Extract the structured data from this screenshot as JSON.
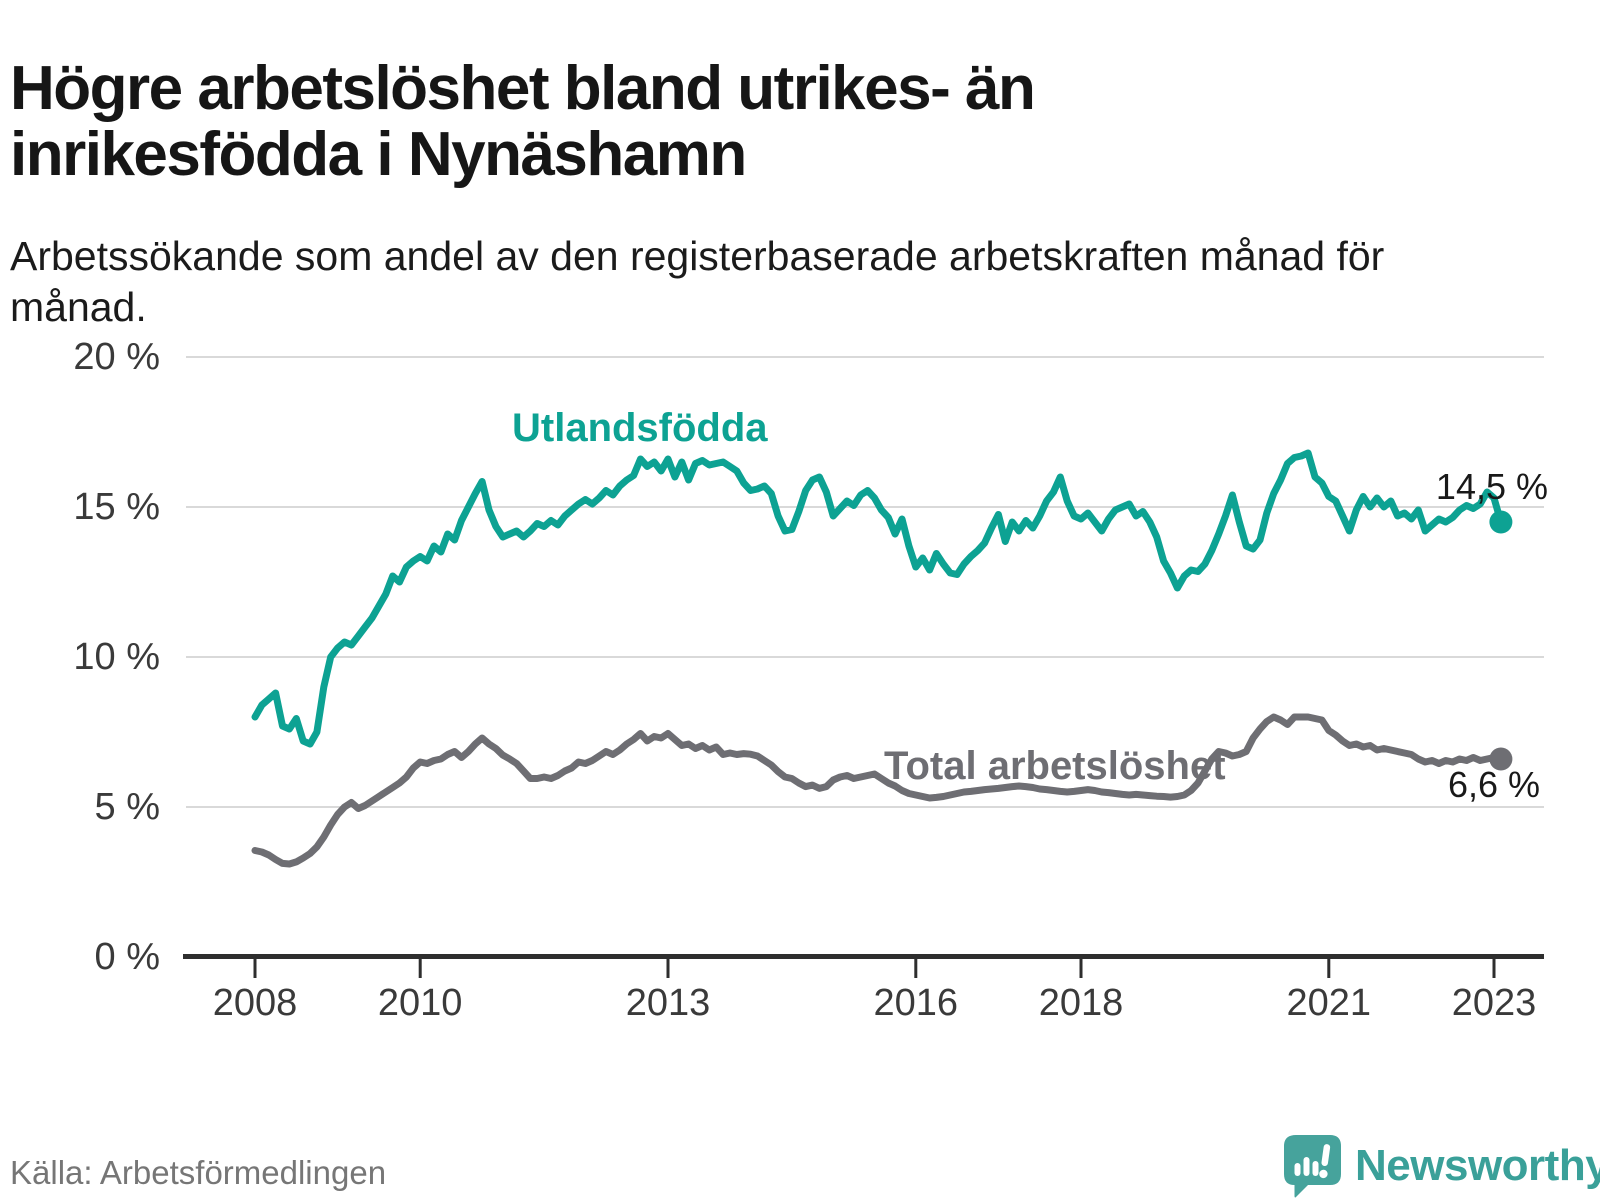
{
  "title": "Högre arbetslöshet bland utrikes- än inrikesfödda i Nynäshamn",
  "subtitle": "Arbetssökande som andel av den registerbaserade arbetskraften månad för månad.",
  "source": "Källa: Arbetsförmedlingen",
  "branding": {
    "logo_text": "Newsworthy",
    "logo_icon": "speech-bubble-bar-chart-exclamation"
  },
  "colors": {
    "accent_teal": "#0da293",
    "series_gray": "#6e6e73",
    "grid": "#d9d9d9",
    "axis": "#2e2e2e",
    "tick_text": "#3a3a3a",
    "annotation_text": "#191919",
    "logo_teal": "#46a39c",
    "logo_text_teal": "#3aa099"
  },
  "chart_data": {
    "type": "line",
    "unit": "%",
    "frequency": "monthly",
    "x_start": "2008-01",
    "x_end": "2023-02",
    "ylim": [
      0,
      20
    ],
    "grid": true,
    "legend": "inline-labels",
    "y_ticks": [
      {
        "label": "20 %",
        "value": 20
      },
      {
        "label": "15 %",
        "value": 15
      },
      {
        "label": "10 %",
        "value": 10
      },
      {
        "label": "5 %",
        "value": 5
      },
      {
        "label": "0 %",
        "value": 0
      }
    ],
    "x_ticks": [
      {
        "label": "2008",
        "year": 2008
      },
      {
        "label": "2010",
        "year": 2010
      },
      {
        "label": "2013",
        "year": 2013
      },
      {
        "label": "2016",
        "year": 2016
      },
      {
        "label": "2018",
        "year": 2018
      },
      {
        "label": "2021",
        "year": 2021
      },
      {
        "label": "2023",
        "year": 2023
      }
    ],
    "series": [
      {
        "name": "Utlandsfödda",
        "color": "#0da293",
        "end_label": "14,5 %",
        "end_value": 14.5,
        "values": [
          8.0,
          8.4,
          8.6,
          8.8,
          7.7,
          7.6,
          7.95,
          7.2,
          7.1,
          7.5,
          9.0,
          10.0,
          10.3,
          10.5,
          10.4,
          10.7,
          11.0,
          11.3,
          11.7,
          12.1,
          12.7,
          12.5,
          13.0,
          13.2,
          13.35,
          13.2,
          13.7,
          13.5,
          14.1,
          13.9,
          14.55,
          15.0,
          15.45,
          15.85,
          14.9,
          14.35,
          14.0,
          14.1,
          14.2,
          14.0,
          14.2,
          14.45,
          14.35,
          14.55,
          14.4,
          14.7,
          14.9,
          15.1,
          15.25,
          15.1,
          15.3,
          15.55,
          15.4,
          15.7,
          15.9,
          16.05,
          16.6,
          16.35,
          16.5,
          16.2,
          16.6,
          16.0,
          16.5,
          15.9,
          16.45,
          16.55,
          16.4,
          16.45,
          16.5,
          16.35,
          16.2,
          15.8,
          15.55,
          15.6,
          15.7,
          15.45,
          14.7,
          14.2,
          14.25,
          14.85,
          15.55,
          15.9,
          16.0,
          15.5,
          14.7,
          14.95,
          15.2,
          15.05,
          15.4,
          15.55,
          15.3,
          14.9,
          14.65,
          14.1,
          14.6,
          13.7,
          13.0,
          13.3,
          12.9,
          13.45,
          13.1,
          12.8,
          12.75,
          13.1,
          13.35,
          13.55,
          13.8,
          14.3,
          14.75,
          13.85,
          14.5,
          14.2,
          14.55,
          14.3,
          14.7,
          15.2,
          15.5,
          16.0,
          15.2,
          14.7,
          14.6,
          14.8,
          14.5,
          14.2,
          14.6,
          14.9,
          15.0,
          15.1,
          14.7,
          14.85,
          14.5,
          14.0,
          13.2,
          12.8,
          12.3,
          12.7,
          12.9,
          12.85,
          13.1,
          13.55,
          14.1,
          14.7,
          15.4,
          14.5,
          13.7,
          13.6,
          13.9,
          14.8,
          15.45,
          15.9,
          16.45,
          16.65,
          16.7,
          16.8,
          16.0,
          15.8,
          15.35,
          15.2,
          14.7,
          14.2,
          14.9,
          15.35,
          15.0,
          15.3,
          15.0,
          15.2,
          14.7,
          14.8,
          14.6,
          14.9,
          14.2,
          14.4,
          14.6,
          14.5,
          14.65,
          14.9,
          15.05,
          14.95,
          15.1,
          15.5,
          15.3,
          14.5
        ]
      },
      {
        "name": "Total arbetslöshet",
        "color": "#6e6e73",
        "end_label": "6,6 %",
        "end_value": 6.6,
        "values": [
          3.55,
          3.5,
          3.4,
          3.25,
          3.12,
          3.1,
          3.17,
          3.3,
          3.45,
          3.67,
          4.0,
          4.4,
          4.75,
          5.0,
          5.15,
          4.95,
          5.05,
          5.2,
          5.35,
          5.5,
          5.65,
          5.8,
          6.0,
          6.3,
          6.5,
          6.45,
          6.55,
          6.6,
          6.75,
          6.85,
          6.65,
          6.85,
          7.1,
          7.3,
          7.1,
          6.95,
          6.73,
          6.6,
          6.45,
          6.2,
          5.95,
          5.95,
          6.0,
          5.95,
          6.05,
          6.2,
          6.3,
          6.5,
          6.45,
          6.55,
          6.7,
          6.85,
          6.75,
          6.9,
          7.1,
          7.25,
          7.45,
          7.2,
          7.35,
          7.3,
          7.45,
          7.25,
          7.05,
          7.1,
          6.95,
          7.05,
          6.9,
          7.0,
          6.75,
          6.8,
          6.75,
          6.78,
          6.76,
          6.7,
          6.55,
          6.4,
          6.18,
          6.0,
          5.95,
          5.8,
          5.68,
          5.73,
          5.62,
          5.68,
          5.9,
          6.0,
          6.05,
          5.95,
          6.0,
          6.05,
          6.1,
          5.95,
          5.8,
          5.7,
          5.55,
          5.45,
          5.4,
          5.35,
          5.3,
          5.32,
          5.35,
          5.4,
          5.45,
          5.5,
          5.52,
          5.55,
          5.58,
          5.6,
          5.62,
          5.65,
          5.68,
          5.7,
          5.68,
          5.65,
          5.6,
          5.58,
          5.55,
          5.52,
          5.5,
          5.52,
          5.55,
          5.58,
          5.55,
          5.5,
          5.48,
          5.45,
          5.42,
          5.4,
          5.42,
          5.4,
          5.38,
          5.36,
          5.35,
          5.33,
          5.35,
          5.4,
          5.55,
          5.8,
          6.2,
          6.6,
          6.85,
          6.8,
          6.7,
          6.75,
          6.85,
          7.3,
          7.6,
          7.85,
          8.0,
          7.9,
          7.75,
          8.0,
          8.0,
          8.0,
          7.95,
          7.9,
          7.55,
          7.4,
          7.2,
          7.05,
          7.1,
          7.0,
          7.05,
          6.9,
          6.95,
          6.9,
          6.85,
          6.8,
          6.75,
          6.6,
          6.5,
          6.55,
          6.45,
          6.55,
          6.5,
          6.6,
          6.55,
          6.65,
          6.55,
          6.6,
          6.65,
          6.6
        ]
      }
    ]
  }
}
